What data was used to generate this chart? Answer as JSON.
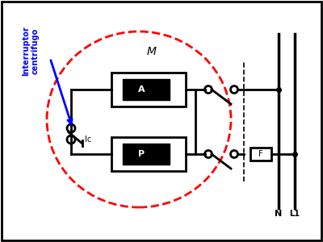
{
  "bg_color": "#ffffff",
  "border_color": "#000000",
  "line_color": "#000000",
  "red_dashed_color": "#ff0000",
  "blue_color": "#0000ff",
  "label_P": "P",
  "label_A": "A",
  "label_M": "M",
  "label_Ic": "Ic",
  "label_F": "F",
  "label_N": "N",
  "label_L1": "L1",
  "label_centrifugo": "Interruptor\ncentrifugo",
  "fig_width": 4.0,
  "fig_height": 3.0,
  "dpi": 100
}
